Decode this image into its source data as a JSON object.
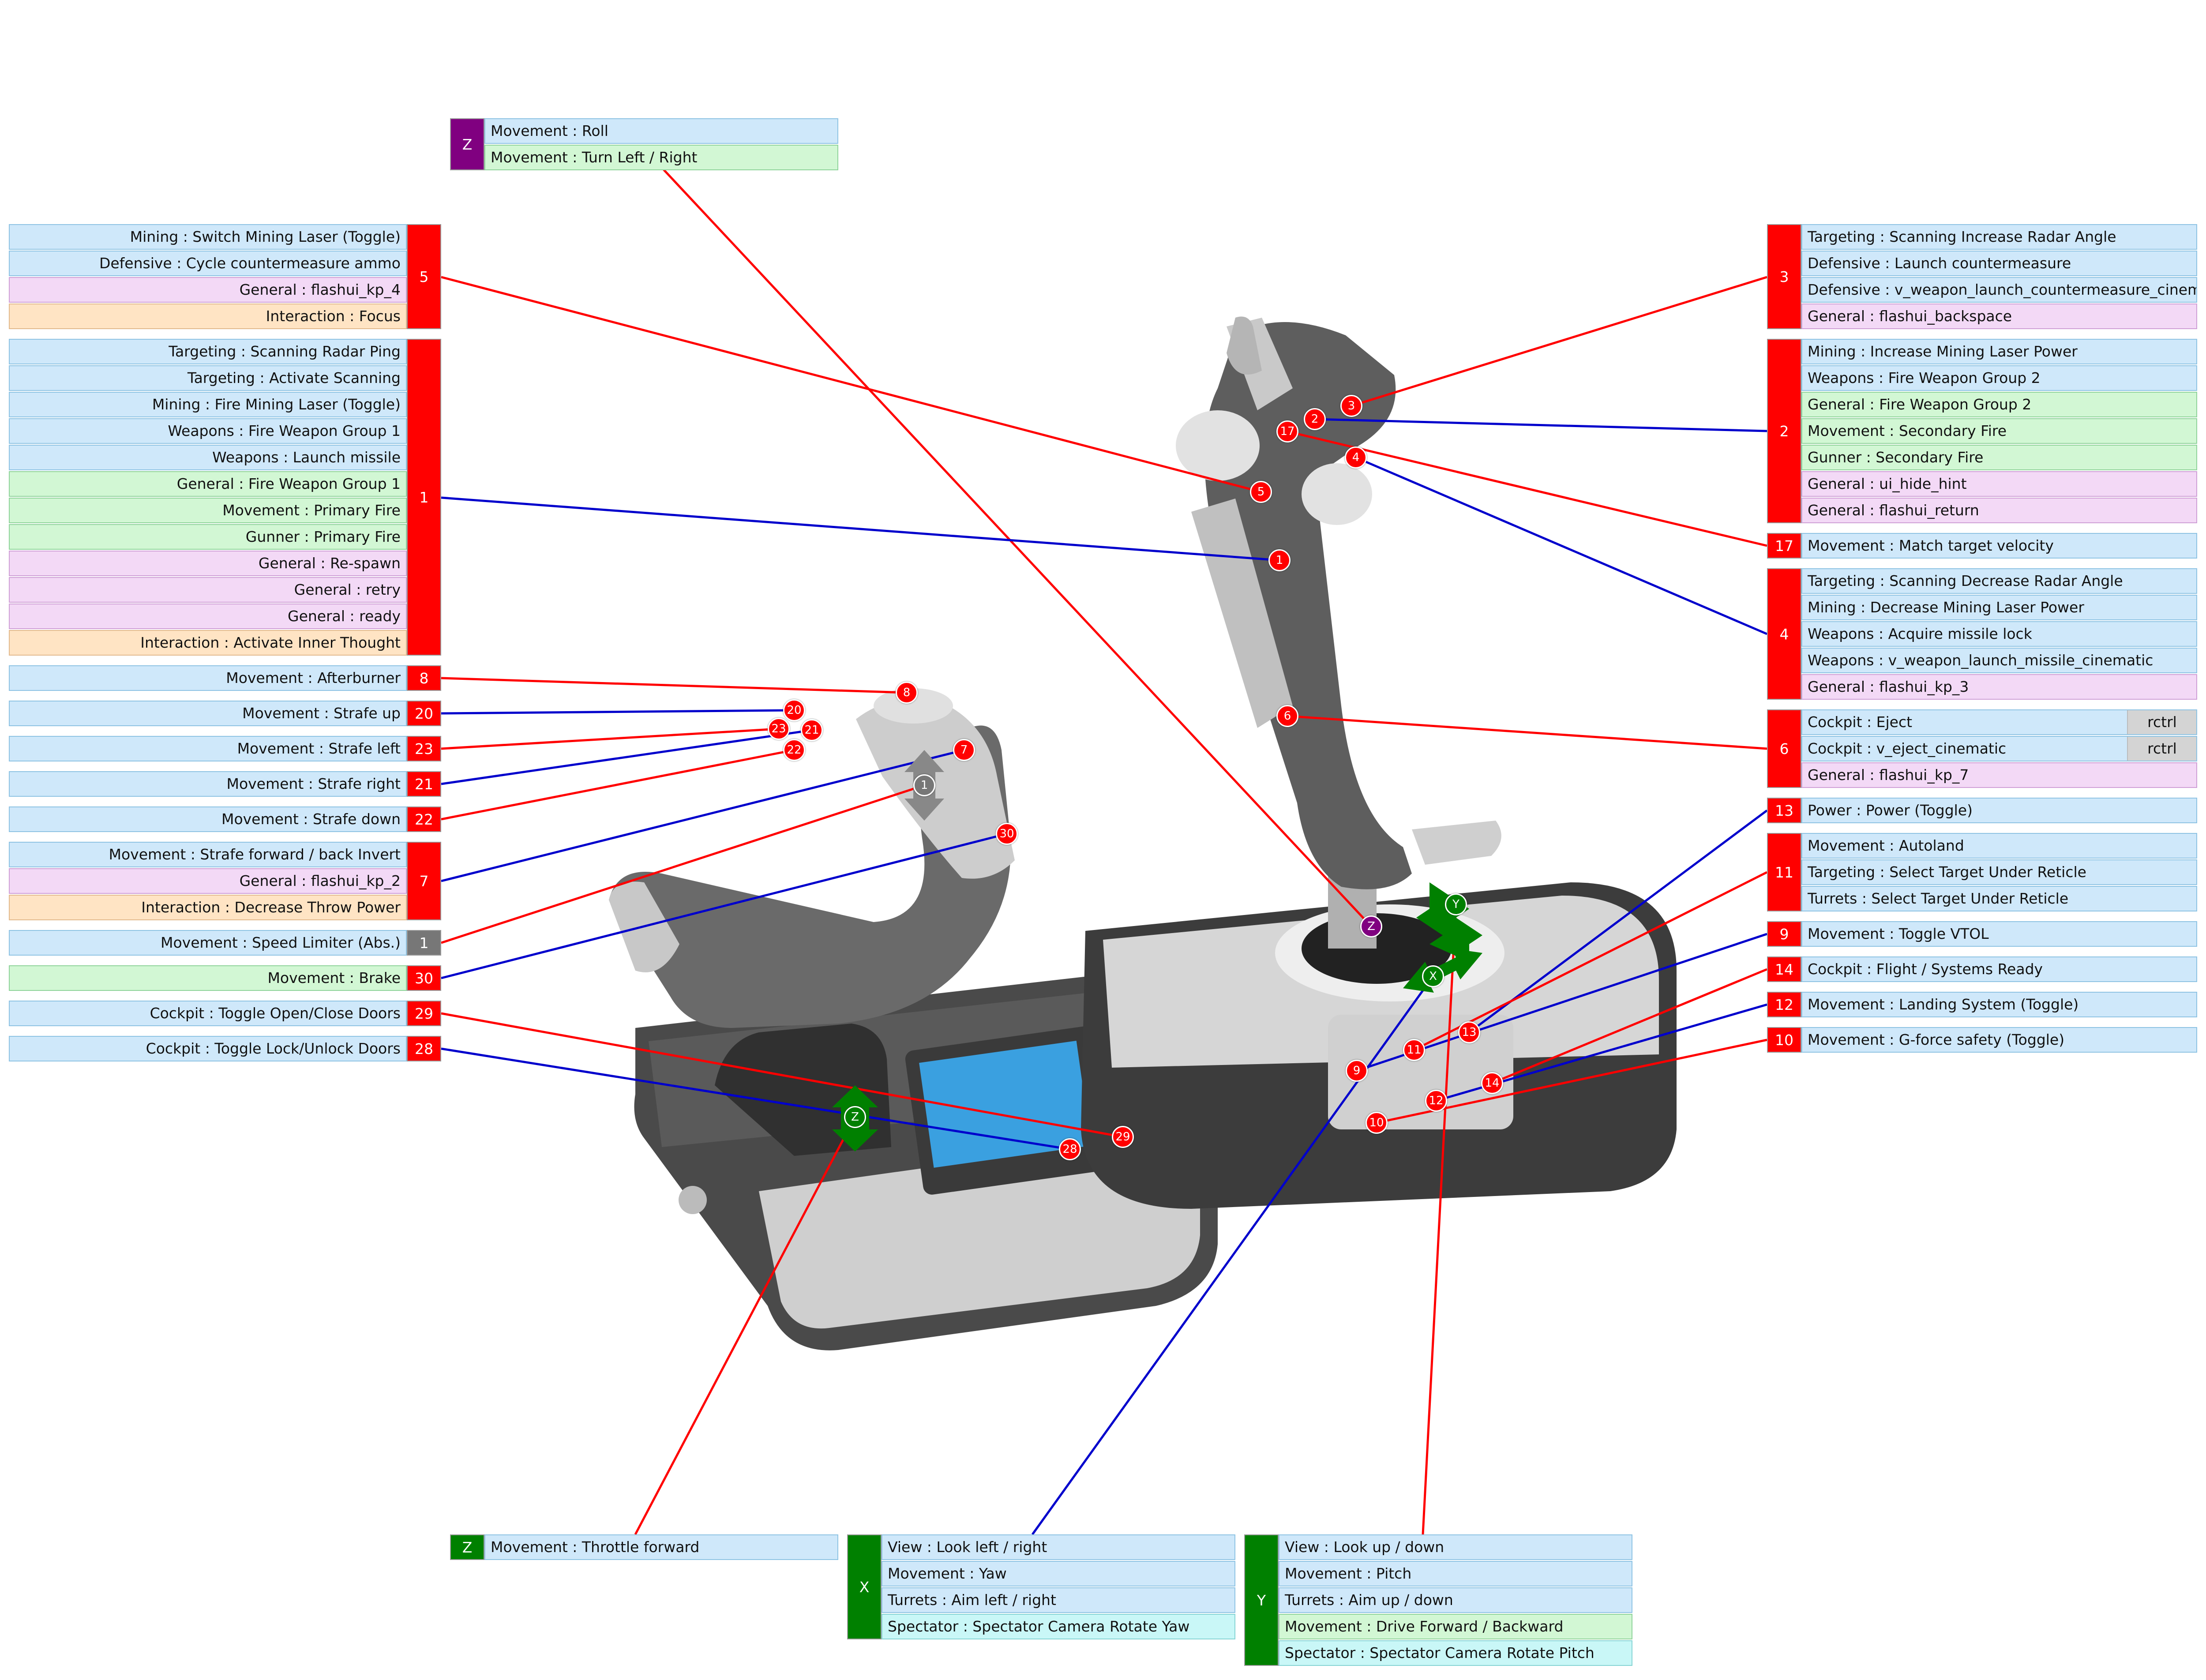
{
  "colors": {
    "red": "#ff0000",
    "blue": "#0000cc",
    "green": "#008000",
    "purple": "#800080",
    "grey": "#777777"
  },
  "groups": [
    {
      "id": "g-z-purple",
      "label": "Z",
      "color": "#800080",
      "side": "right",
      "rows": [
        {
          "text": "Movement : Roll",
          "cat": "blue"
        },
        {
          "text": "Movement : Turn Left / Right",
          "cat": "green"
        }
      ]
    },
    {
      "id": "g-5",
      "label": "5",
      "color": "#ff0000",
      "side": "left",
      "rows": [
        {
          "text": "Mining : Switch Mining Laser (Toggle)",
          "cat": "blue"
        },
        {
          "text": "Defensive : Cycle countermeasure ammo",
          "cat": "blue"
        },
        {
          "text": "General : flashui_kp_4",
          "cat": "pink"
        },
        {
          "text": "Interaction : Focus",
          "cat": "orange"
        }
      ]
    },
    {
      "id": "g-1",
      "label": "1",
      "color": "#ff0000",
      "side": "left",
      "rows": [
        {
          "text": "Targeting : Scanning Radar Ping",
          "cat": "blue"
        },
        {
          "text": "Targeting : Activate Scanning",
          "cat": "blue"
        },
        {
          "text": "Mining : Fire Mining Laser (Toggle)",
          "cat": "blue"
        },
        {
          "text": "Weapons : Fire Weapon Group 1",
          "cat": "blue"
        },
        {
          "text": "Weapons : Launch missile",
          "cat": "blue"
        },
        {
          "text": "General : Fire Weapon Group 1",
          "cat": "green"
        },
        {
          "text": "Movement : Primary Fire",
          "cat": "green"
        },
        {
          "text": "Gunner : Primary Fire",
          "cat": "green"
        },
        {
          "text": "General : Re-spawn",
          "cat": "pink"
        },
        {
          "text": "General : retry",
          "cat": "pink"
        },
        {
          "text": "General : ready",
          "cat": "pink"
        },
        {
          "text": "Interaction : Activate Inner Thought",
          "cat": "orange"
        }
      ]
    },
    {
      "id": "g-8",
      "label": "8",
      "color": "#ff0000",
      "side": "left",
      "rows": [
        {
          "text": "Movement : Afterburner",
          "cat": "blue"
        }
      ]
    },
    {
      "id": "g-20",
      "label": "20",
      "color": "#ff0000",
      "side": "left",
      "rows": [
        {
          "text": "Movement : Strafe up",
          "cat": "blue"
        }
      ]
    },
    {
      "id": "g-23",
      "label": "23",
      "color": "#ff0000",
      "side": "left",
      "rows": [
        {
          "text": "Movement : Strafe left",
          "cat": "blue"
        }
      ]
    },
    {
      "id": "g-21",
      "label": "21",
      "color": "#ff0000",
      "side": "left",
      "rows": [
        {
          "text": "Movement : Strafe right",
          "cat": "blue"
        }
      ]
    },
    {
      "id": "g-22",
      "label": "22",
      "color": "#ff0000",
      "side": "left",
      "rows": [
        {
          "text": "Movement : Strafe down",
          "cat": "blue"
        }
      ]
    },
    {
      "id": "g-7",
      "label": "7",
      "color": "#ff0000",
      "side": "left",
      "rows": [
        {
          "text": "Movement : Strafe forward / back Invert",
          "cat": "blue"
        },
        {
          "text": "General : flashui_kp_2",
          "cat": "pink"
        },
        {
          "text": "Interaction : Decrease Throw Power",
          "cat": "orange"
        }
      ]
    },
    {
      "id": "g-1-grey",
      "label": "1",
      "color": "#777777",
      "side": "left",
      "rows": [
        {
          "text": "Movement : Speed Limiter (Abs.)",
          "cat": "blue"
        }
      ]
    },
    {
      "id": "g-30",
      "label": "30",
      "color": "#ff0000",
      "side": "left",
      "rows": [
        {
          "text": "Movement : Brake",
          "cat": "green"
        }
      ]
    },
    {
      "id": "g-29",
      "label": "29",
      "color": "#ff0000",
      "side": "left",
      "rows": [
        {
          "text": "Cockpit : Toggle Open/Close Doors",
          "cat": "blue"
        }
      ]
    },
    {
      "id": "g-28",
      "label": "28",
      "color": "#ff0000",
      "side": "left",
      "rows": [
        {
          "text": "Cockpit : Toggle Lock/Unlock Doors",
          "cat": "blue"
        }
      ]
    },
    {
      "id": "g-3",
      "label": "3",
      "color": "#ff0000",
      "side": "right",
      "rows": [
        {
          "text": "Targeting : Scanning Increase Radar Angle",
          "cat": "blue"
        },
        {
          "text": "Defensive : Launch countermeasure",
          "cat": "blue"
        },
        {
          "text": "Defensive : v_weapon_launch_countermeasure_cinematic",
          "cat": "blue"
        },
        {
          "text": "General : flashui_backspace",
          "cat": "pink"
        }
      ]
    },
    {
      "id": "g-2",
      "label": "2",
      "color": "#ff0000",
      "side": "right",
      "rows": [
        {
          "text": "Mining : Increase Mining Laser Power",
          "cat": "blue"
        },
        {
          "text": "Weapons : Fire Weapon Group 2",
          "cat": "blue"
        },
        {
          "text": "General : Fire Weapon Group 2",
          "cat": "green"
        },
        {
          "text": "Movement : Secondary Fire",
          "cat": "green"
        },
        {
          "text": "Gunner : Secondary Fire",
          "cat": "green"
        },
        {
          "text": "General : ui_hide_hint",
          "cat": "pink"
        },
        {
          "text": "General : flashui_return",
          "cat": "pink"
        }
      ]
    },
    {
      "id": "g-17",
      "label": "17",
      "color": "#ff0000",
      "side": "right",
      "rows": [
        {
          "text": "Movement : Match target velocity",
          "cat": "blue"
        }
      ]
    },
    {
      "id": "g-4",
      "label": "4",
      "color": "#ff0000",
      "side": "right",
      "rows": [
        {
          "text": "Targeting : Scanning Decrease Radar Angle",
          "cat": "blue"
        },
        {
          "text": "Mining : Decrease Mining Laser Power",
          "cat": "blue"
        },
        {
          "text": "Weapons : Acquire missile lock",
          "cat": "blue"
        },
        {
          "text": "Weapons : v_weapon_launch_missile_cinematic",
          "cat": "blue"
        },
        {
          "text": "General : flashui_kp_3",
          "cat": "pink"
        }
      ]
    },
    {
      "id": "g-6",
      "label": "6",
      "color": "#ff0000",
      "side": "right",
      "rows": [
        {
          "text": "Cockpit : Eject",
          "cat": "blue",
          "key": "rctrl"
        },
        {
          "text": "Cockpit : v_eject_cinematic",
          "cat": "blue",
          "key": "rctrl"
        },
        {
          "text": "General : flashui_kp_7",
          "cat": "pink"
        }
      ]
    },
    {
      "id": "g-13",
      "label": "13",
      "color": "#ff0000",
      "side": "right",
      "rows": [
        {
          "text": "Power : Power (Toggle)",
          "cat": "blue"
        }
      ]
    },
    {
      "id": "g-11",
      "label": "11",
      "color": "#ff0000",
      "side": "right",
      "rows": [
        {
          "text": "Movement : Autoland",
          "cat": "blue"
        },
        {
          "text": "Targeting : Select Target Under Reticle",
          "cat": "blue"
        },
        {
          "text": "Turrets : Select Target Under Reticle",
          "cat": "blue"
        }
      ]
    },
    {
      "id": "g-9",
      "label": "9",
      "color": "#ff0000",
      "side": "right",
      "rows": [
        {
          "text": "Movement : Toggle VTOL",
          "cat": "blue"
        }
      ]
    },
    {
      "id": "g-14",
      "label": "14",
      "color": "#ff0000",
      "side": "right",
      "rows": [
        {
          "text": "Cockpit : Flight / Systems Ready",
          "cat": "blue"
        }
      ]
    },
    {
      "id": "g-12",
      "label": "12",
      "color": "#ff0000",
      "side": "right",
      "rows": [
        {
          "text": "Movement : Landing System (Toggle)",
          "cat": "blue"
        }
      ]
    },
    {
      "id": "g-10",
      "label": "10",
      "color": "#ff0000",
      "side": "right",
      "rows": [
        {
          "text": "Movement : G-force safety (Toggle)",
          "cat": "blue"
        }
      ]
    },
    {
      "id": "g-z-green",
      "label": "Z",
      "color": "#008000",
      "side": "bottom",
      "rows": [
        {
          "text": "Movement : Throttle forward",
          "cat": "blue"
        }
      ]
    },
    {
      "id": "g-x",
      "label": "X",
      "color": "#008000",
      "side": "bottom",
      "rows": [
        {
          "text": "View : Look left / right",
          "cat": "blue"
        },
        {
          "text": "Movement : Yaw",
          "cat": "blue"
        },
        {
          "text": "Turrets : Aim left / right",
          "cat": "blue"
        },
        {
          "text": "Spectator : Spectator Camera Rotate Yaw",
          "cat": "cyan"
        }
      ]
    },
    {
      "id": "g-y",
      "label": "Y",
      "color": "#008000",
      "side": "bottom",
      "rows": [
        {
          "text": "View : Look up / down",
          "cat": "blue"
        },
        {
          "text": "Movement : Pitch",
          "cat": "blue"
        },
        {
          "text": "Turrets : Aim up / down",
          "cat": "blue"
        },
        {
          "text": "Movement : Drive Forward / Backward",
          "cat": "green"
        },
        {
          "text": "Spectator : Spectator Camera Rotate Pitch",
          "cat": "cyan"
        }
      ]
    }
  ],
  "markers": [
    {
      "label": "1",
      "color": "#ff0000"
    },
    {
      "label": "2",
      "color": "#ff0000"
    },
    {
      "label": "3",
      "color": "#ff0000"
    },
    {
      "label": "4",
      "color": "#ff0000"
    },
    {
      "label": "5",
      "color": "#ff0000"
    },
    {
      "label": "6",
      "color": "#ff0000"
    },
    {
      "label": "17",
      "color": "#ff0000"
    },
    {
      "label": "Z",
      "color": "#800080"
    },
    {
      "label": "Y",
      "color": "#008000"
    },
    {
      "label": "X",
      "color": "#008000"
    },
    {
      "label": "9",
      "color": "#ff0000"
    },
    {
      "label": "10",
      "color": "#ff0000"
    },
    {
      "label": "11",
      "color": "#ff0000"
    },
    {
      "label": "12",
      "color": "#ff0000"
    },
    {
      "label": "13",
      "color": "#ff0000"
    },
    {
      "label": "14",
      "color": "#ff0000"
    },
    {
      "label": "8",
      "color": "#ff0000"
    },
    {
      "label": "20",
      "color": "#ff0000"
    },
    {
      "label": "21",
      "color": "#ff0000"
    },
    {
      "label": "22",
      "color": "#ff0000"
    },
    {
      "label": "23",
      "color": "#ff0000"
    },
    {
      "label": "7",
      "color": "#ff0000"
    },
    {
      "label": "1",
      "color": "#777777"
    },
    {
      "label": "30",
      "color": "#ff0000"
    },
    {
      "label": "28",
      "color": "#ff0000"
    },
    {
      "label": "29",
      "color": "#ff0000"
    },
    {
      "label": "Z",
      "color": "#008000"
    }
  ]
}
